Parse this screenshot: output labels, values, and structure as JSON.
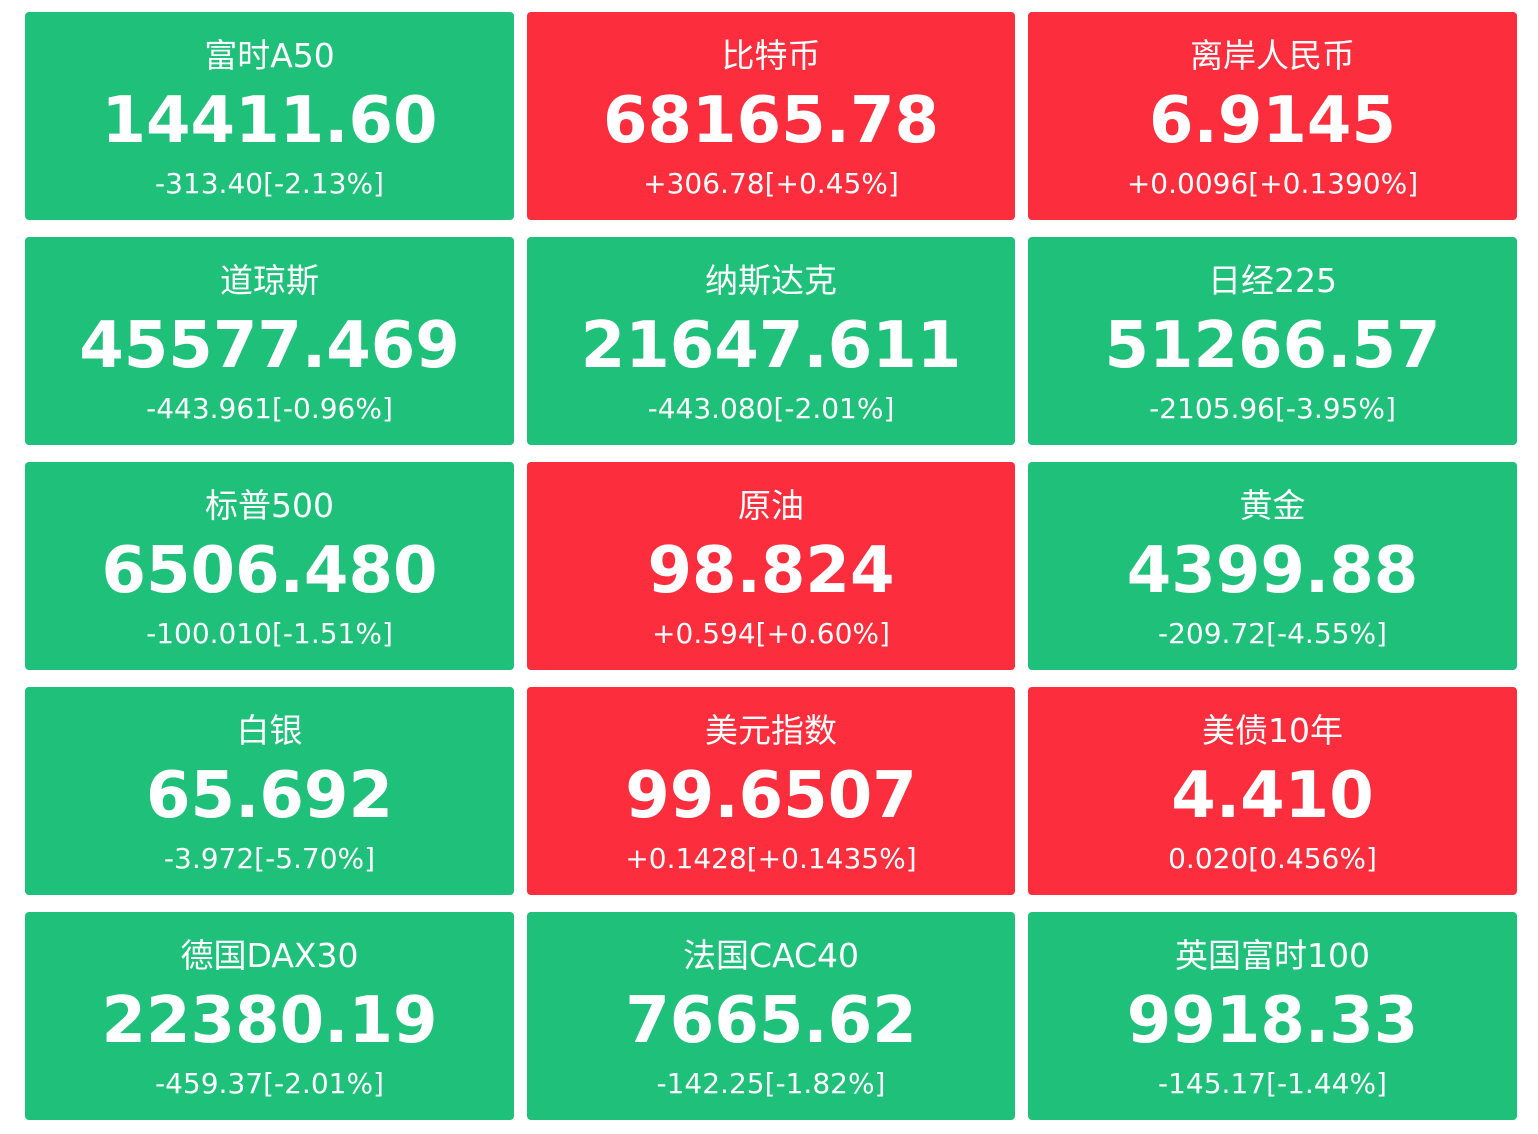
{
  "colors": {
    "down": "#1fc07a",
    "up": "#fc2d3c",
    "text": "#ffffff"
  },
  "quotes": [
    {
      "name": "富时A50",
      "price": "14411.60",
      "change": "-313.40[-2.13%]",
      "trend": "down"
    },
    {
      "name": "比特币",
      "price": "68165.78",
      "change": "+306.78[+0.45%]",
      "trend": "up"
    },
    {
      "name": "离岸人民币",
      "price": "6.9145",
      "change": "+0.0096[+0.1390%]",
      "trend": "up"
    },
    {
      "name": "道琼斯",
      "price": "45577.469",
      "change": "-443.961[-0.96%]",
      "trend": "down"
    },
    {
      "name": "纳斯达克",
      "price": "21647.611",
      "change": "-443.080[-2.01%]",
      "trend": "down"
    },
    {
      "name": "日经225",
      "price": "51266.57",
      "change": "-2105.96[-3.95%]",
      "trend": "down"
    },
    {
      "name": "标普500",
      "price": "6506.480",
      "change": "-100.010[-1.51%]",
      "trend": "down"
    },
    {
      "name": "原油",
      "price": "98.824",
      "change": "+0.594[+0.60%]",
      "trend": "up"
    },
    {
      "name": "黄金",
      "price": "4399.88",
      "change": "-209.72[-4.55%]",
      "trend": "down"
    },
    {
      "name": "白银",
      "price": "65.692",
      "change": "-3.972[-5.70%]",
      "trend": "down"
    },
    {
      "name": "美元指数",
      "price": "99.6507",
      "change": "+0.1428[+0.1435%]",
      "trend": "up"
    },
    {
      "name": "美债10年",
      "price": "4.410",
      "change": "0.020[0.456%]",
      "trend": "up"
    },
    {
      "name": "德国DAX30",
      "price": "22380.19",
      "change": "-459.37[-2.01%]",
      "trend": "down"
    },
    {
      "name": "法国CAC40",
      "price": "7665.62",
      "change": "-142.25[-1.82%]",
      "trend": "down"
    },
    {
      "name": "英国富时100",
      "price": "9918.33",
      "change": "-145.17[-1.44%]",
      "trend": "down"
    }
  ]
}
